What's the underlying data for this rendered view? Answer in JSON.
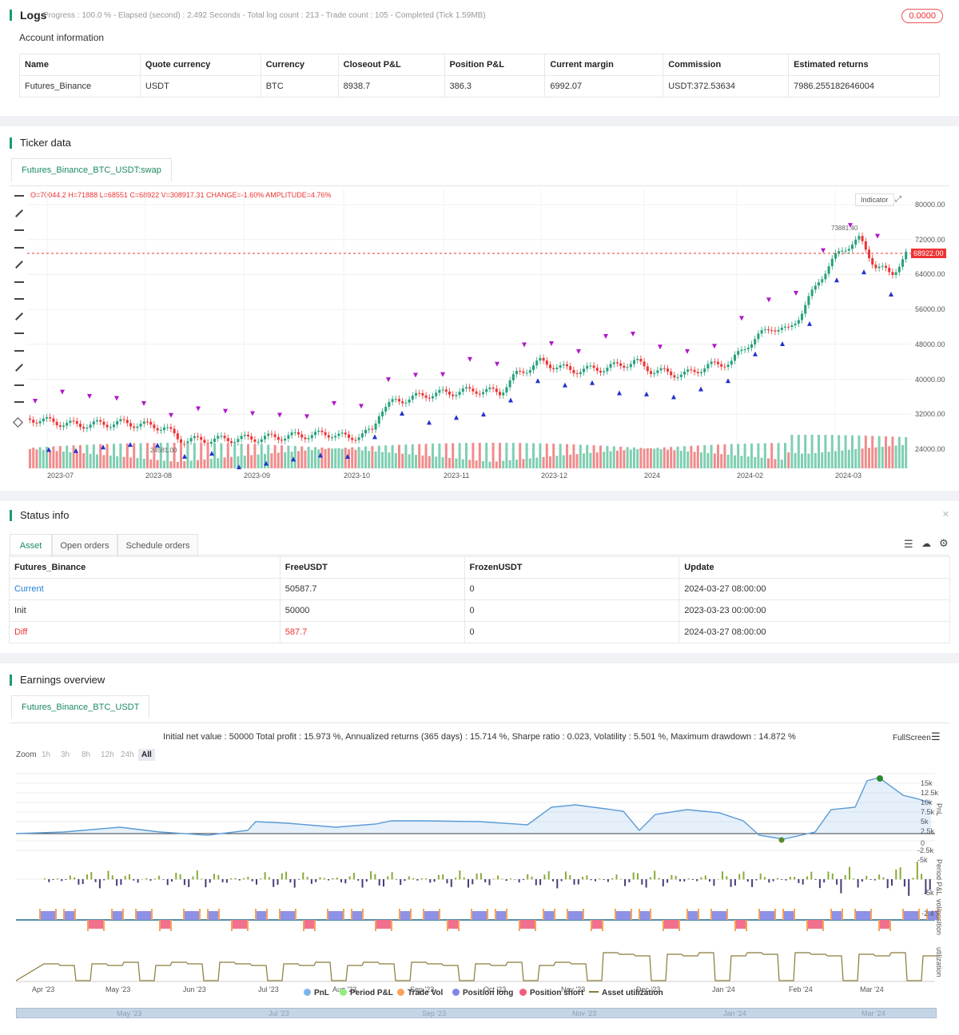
{
  "logs": {
    "title": "Logs",
    "meta": "Progress : 100.0 % - Elapsed (second) : 2.492  Seconds - Total log count : 213 - Trade count : 105 - Completed (Tick 1.59MB)",
    "badge": "0.0000"
  },
  "account": {
    "title": "Account information",
    "headers": [
      "Name",
      "Quote currency",
      "Currency",
      "Closeout P&L",
      "Position P&L",
      "Current margin",
      "Commission",
      "Estimated returns"
    ],
    "row": [
      "Futures_Binance",
      "USDT",
      "BTC",
      "8938.7",
      "386.3",
      "6992.07",
      "USDT:372.53634",
      "7986.255182646004"
    ]
  },
  "ticker": {
    "title": "Ticker data",
    "tab": "Futures_Binance_BTC_USDT:swap",
    "ohlc": "O=70044.2 H=71888 L=68551 C=68922 V=308917.31 CHANGE=-1.60% AMPLITUDE=4.76%",
    "indicator_btn": "Indicator",
    "price_tag": "68922.00",
    "high_label": "73881.40",
    "low_label": "24581.00",
    "y_labels": [
      "80000.00",
      "72000.00",
      "64000.00",
      "56000.00",
      "48000.00",
      "40000.00",
      "32000.00",
      "24000.00"
    ],
    "x_labels": [
      "2023-07",
      "2023-08",
      "2023-09",
      "2023-10",
      "2023-11",
      "2023-12",
      "2024",
      "2024-02",
      "2024-03"
    ]
  },
  "status": {
    "title": "Status info",
    "tabs": [
      "Asset",
      "Open orders",
      "Schedule orders"
    ],
    "headers": [
      "Futures_Binance",
      "FreeUSDT",
      "FrozenUSDT",
      "Update"
    ],
    "rows": [
      [
        "Current",
        "50587.7",
        "0",
        "2024-03-27 08:00:00"
      ],
      [
        "Init",
        "50000",
        "0",
        "2023-03-23 00:00:00"
      ],
      [
        "Diff",
        "587.7",
        "0",
        "2024-03-27 08:00:00"
      ]
    ]
  },
  "earnings": {
    "title": "Earnings overview",
    "tab": "Futures_Binance_BTC_USDT",
    "summary": "Initial net value : 50000  Total profit : 15.973 %, Annualized returns (365 days) : 15.714 %, Sharpe ratio : 0.023, Volatility : 5.501 %, Maximum drawdown : 14.872 %",
    "fullscreen": "FullScreen",
    "zoom_label": "Zoom",
    "zoom_opts": [
      "1h",
      "3h",
      "8h",
      "12h",
      "24h",
      "All"
    ],
    "pnl_labels": [
      "15k",
      "12.5k",
      "10k",
      "7.5k",
      "5k",
      "2.5k",
      "0",
      "-2.5k",
      "-5k"
    ],
    "period_label": "-5k",
    "vol_label": "-2.4",
    "axis_titles": [
      "PnL",
      "Period P&L",
      "vol/position",
      "utilization"
    ],
    "x_labels": [
      "Apr '23",
      "May '23",
      "Jun '23",
      "Jul '23",
      "Aug '23",
      "Sep '23",
      "Oct '23",
      "Nov '23",
      "Dec '23",
      "Jan '24",
      "Feb '24",
      "Mar '24"
    ],
    "nav_labels": [
      "May '23",
      "Jul '23",
      "Sep '23",
      "Nov '23",
      "Jan '24",
      "Mar '24"
    ],
    "legend": [
      {
        "name": "PnL",
        "color": "#7cb5ec"
      },
      {
        "name": "Period P&L",
        "color": "#90ed7d"
      },
      {
        "name": "Trade Vol",
        "color": "#f7a35c"
      },
      {
        "name": "Position long",
        "color": "#8085e9"
      },
      {
        "name": "Position short",
        "color": "#f15c80"
      },
      {
        "name": "Asset utilization",
        "color": "#8a7a3a"
      }
    ]
  }
}
